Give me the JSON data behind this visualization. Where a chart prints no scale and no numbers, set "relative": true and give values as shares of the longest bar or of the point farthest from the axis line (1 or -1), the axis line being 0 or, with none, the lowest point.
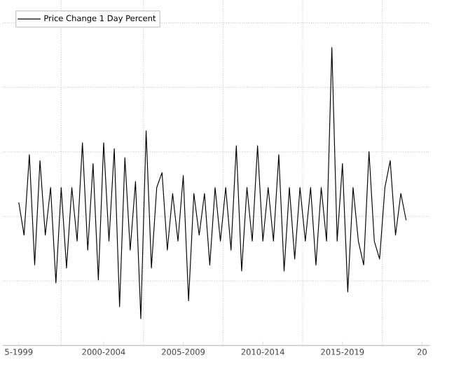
{
  "chart_data": {
    "type": "line",
    "relative": true,
    "legend": "top left",
    "grid": true,
    "tick_labels": "x",
    "categories": [
      "5-1999",
      null,
      null,
      null,
      null,
      null,
      null,
      null,
      null,
      null,
      null,
      null,
      null,
      null,
      null,
      null,
      "2000-2004",
      null,
      null,
      null,
      null,
      null,
      null,
      null,
      null,
      null,
      null,
      null,
      null,
      null,
      null,
      "2005-2009",
      null,
      null,
      null,
      null,
      null,
      null,
      null,
      null,
      null,
      null,
      null,
      null,
      null,
      null,
      "2010-2014",
      null,
      null,
      null,
      null,
      null,
      null,
      null,
      null,
      null,
      null,
      null,
      null,
      null,
      null,
      "2015-2019",
      null,
      null,
      null,
      null,
      null,
      null,
      null,
      null,
      null,
      null,
      null,
      null,
      null,
      null,
      "20"
    ],
    "series": [
      {
        "name": "Price Change 1 Day Percent",
        "color": "#000000",
        "values": [
          0.48,
          0.37,
          0.64,
          0.27,
          0.62,
          0.37,
          0.53,
          0.21,
          0.53,
          0.26,
          0.53,
          0.35,
          0.68,
          0.32,
          0.61,
          0.22,
          0.68,
          0.35,
          0.66,
          0.13,
          0.63,
          0.32,
          0.55,
          0.09,
          0.72,
          0.26,
          0.53,
          0.58,
          0.32,
          0.51,
          0.35,
          0.57,
          0.15,
          0.51,
          0.37,
          0.51,
          0.27,
          0.53,
          0.35,
          0.53,
          0.32,
          0.67,
          0.25,
          0.53,
          0.35,
          0.67,
          0.35,
          0.53,
          0.35,
          0.64,
          0.25,
          0.53,
          0.29,
          0.53,
          0.35,
          0.53,
          0.27,
          0.53,
          0.35,
          1.0,
          0.35,
          0.61,
          0.18,
          0.53,
          0.35,
          0.27,
          0.65,
          0.35,
          0.29,
          0.53,
          0.62,
          0.37,
          0.51,
          0.42,
          null,
          null,
          null
        ]
      }
    ]
  }
}
